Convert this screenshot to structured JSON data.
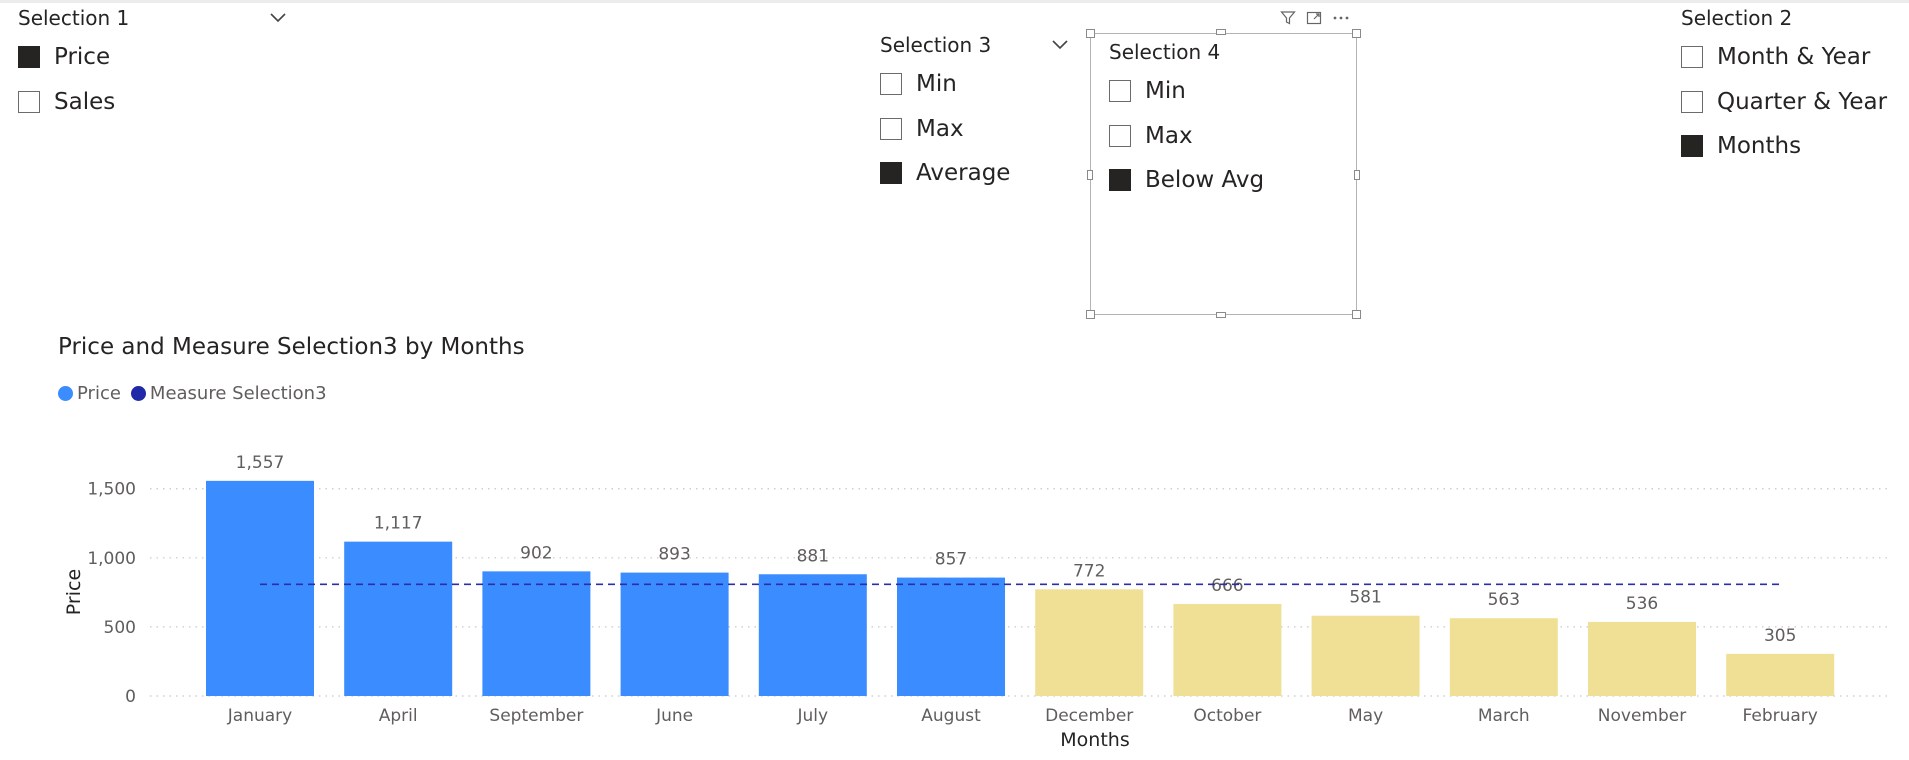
{
  "slicers": {
    "selection1": {
      "title": "Selection 1",
      "options": [
        {
          "label": "Price",
          "checked": true
        },
        {
          "label": "Sales",
          "checked": false
        }
      ]
    },
    "selection3": {
      "title": "Selection 3",
      "options": [
        {
          "label": "Min",
          "checked": false
        },
        {
          "label": "Max",
          "checked": false
        },
        {
          "label": "Average",
          "checked": true
        }
      ]
    },
    "selection4": {
      "title": "Selection 4",
      "options": [
        {
          "label": "Min",
          "checked": false
        },
        {
          "label": "Max",
          "checked": false
        },
        {
          "label": "Below Avg",
          "checked": true
        }
      ]
    },
    "selection2": {
      "title": "Selection 2",
      "options": [
        {
          "label": "Month & Year",
          "checked": false
        },
        {
          "label": "Quarter & Year",
          "checked": false
        },
        {
          "label": "Months",
          "checked": true
        }
      ]
    }
  },
  "colors": {
    "above": "#3a8cff",
    "below": "#efe096",
    "measure_line": "#2b2ea8",
    "legend_price": "#3a8cff",
    "legend_measure": "#2029a8"
  },
  "chart_data": {
    "type": "bar",
    "title": "Price and Measure Selection3 by Months",
    "xlabel": "Months",
    "ylabel": "Price",
    "legend": [
      "Price",
      "Measure Selection3"
    ],
    "legend_position": "top-left",
    "categories": [
      "January",
      "April",
      "September",
      "June",
      "July",
      "August",
      "December",
      "October",
      "May",
      "March",
      "November",
      "February"
    ],
    "values": [
      1557,
      1117,
      902,
      893,
      881,
      857,
      772,
      666,
      581,
      563,
      536,
      305
    ],
    "data_labels": [
      "1,557",
      "1,117",
      "902",
      "893",
      "881",
      "857",
      "772",
      "666",
      "581",
      "563",
      "536",
      "305"
    ],
    "below_average": [
      false,
      false,
      false,
      false,
      false,
      false,
      true,
      true,
      true,
      true,
      true,
      true
    ],
    "measure_line_value": 808,
    "ylim": [
      0,
      1650
    ],
    "yticks": [
      0,
      500,
      1000,
      1500
    ],
    "ytick_labels": [
      "0",
      "500",
      "1,000",
      "1,500"
    ],
    "grid": true
  }
}
